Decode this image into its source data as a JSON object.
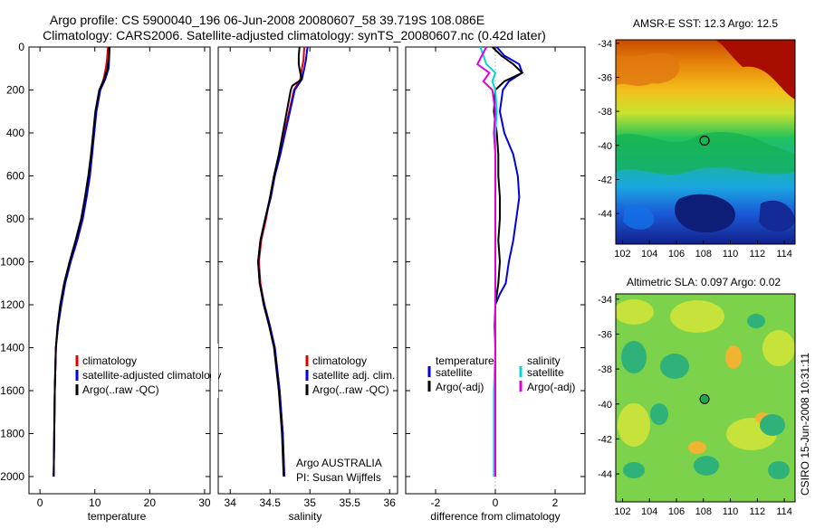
{
  "title": {
    "line1": "Argo profile: CS 5900040_196 06-Jun-2008 20080607_58 39.719S 108.086E",
    "line2": "Climatology: CARS2006. Satellite-adjusted climatology: synTS_20080607.nc (0.42d later)"
  },
  "side_label": "CSIRO 15-Jun-2008 10:31:11",
  "chart_data": [
    {
      "type": "line",
      "id": "temperature",
      "xlabel": "temperature",
      "xlim": [
        -2,
        31
      ],
      "xticks": [
        "0",
        "10",
        "20",
        "30"
      ],
      "xtick_values": [
        0,
        10,
        20,
        30
      ],
      "ylim": [
        2080,
        0
      ],
      "yticks": [
        "0",
        "200",
        "400",
        "600",
        "800",
        "1000",
        "1200",
        "1400",
        "1600",
        "1800",
        "2000"
      ],
      "ytick_values": [
        0,
        200,
        400,
        600,
        800,
        1000,
        1200,
        1400,
        1600,
        1800,
        2000
      ],
      "legend": [
        "climatology",
        "satellite-adjusted climatology",
        "Argo(..raw -QC)"
      ],
      "series": [
        {
          "name": "climatology",
          "color": "#e00000",
          "depth": [
            0,
            60,
            100,
            150,
            200,
            300,
            400,
            500,
            600,
            700,
            800,
            900,
            1000,
            1100,
            1200,
            1300,
            1400,
            1600,
            1800,
            2000
          ],
          "values": [
            12.4,
            12.2,
            12.0,
            11.6,
            10.9,
            10.2,
            9.8,
            9.5,
            9.0,
            8.4,
            7.7,
            6.7,
            5.5,
            4.5,
            3.8,
            3.3,
            2.9,
            2.7,
            2.6,
            2.5
          ]
        },
        {
          "name": "satellite-adjusted climatology",
          "color": "#0000e0",
          "depth": [
            0,
            60,
            100,
            150,
            200,
            300,
            400,
            500,
            600,
            700,
            800,
            900,
            1000,
            1100,
            1200,
            1300,
            1400,
            1600,
            1800,
            2000
          ],
          "values": [
            12.7,
            12.6,
            12.5,
            11.9,
            11.0,
            10.3,
            9.9,
            9.5,
            9.1,
            8.5,
            7.8,
            6.8,
            5.6,
            4.6,
            3.9,
            3.3,
            2.9,
            2.7,
            2.6,
            2.5
          ]
        },
        {
          "name": "Argo(..raw -QC)",
          "color": "#000000",
          "depth": [
            0,
            60,
            100,
            150,
            200,
            300,
            400,
            500,
            600,
            700,
            800,
            900,
            1000,
            1100,
            1200,
            1300,
            1400,
            1600,
            1800,
            2000
          ],
          "values": [
            12.6,
            12.5,
            12.3,
            11.7,
            10.8,
            10.1,
            9.7,
            9.3,
            8.8,
            8.2,
            7.5,
            6.5,
            5.4,
            4.4,
            3.7,
            3.2,
            2.9,
            2.7,
            2.6,
            2.5
          ]
        }
      ]
    },
    {
      "type": "line",
      "id": "salinity",
      "xlabel": "salinity",
      "xlim": [
        33.85,
        36.1
      ],
      "xticks": [
        "34",
        "34.5",
        "35",
        "35.5",
        "36"
      ],
      "xtick_values": [
        34,
        34.5,
        35,
        35.5,
        36
      ],
      "ylim": [
        2080,
        0
      ],
      "legend": [
        "climatology",
        "satellite adj. clim.",
        "Argo(..raw -QC)"
      ],
      "annotations": [
        "Argo AUSTRALIA",
        "PI: Susan Wijffels"
      ],
      "series": [
        {
          "name": "climatology",
          "color": "#e00000",
          "depth": [
            0,
            60,
            100,
            150,
            200,
            300,
            400,
            500,
            600,
            700,
            800,
            900,
            1000,
            1100,
            1200,
            1300,
            1400,
            1600,
            1800,
            2000
          ],
          "values": [
            34.93,
            34.92,
            34.9,
            34.88,
            34.8,
            34.74,
            34.68,
            34.62,
            34.55,
            34.5,
            34.45,
            34.39,
            34.36,
            34.38,
            34.43,
            34.5,
            34.56,
            34.62,
            34.66,
            34.68
          ]
        },
        {
          "name": "satellite adj. clim.",
          "color": "#0000e0",
          "depth": [
            0,
            60,
            100,
            150,
            200,
            300,
            400,
            500,
            600,
            700,
            800,
            900,
            1000,
            1100,
            1200,
            1300,
            1400,
            1600,
            1800,
            2000
          ],
          "values": [
            34.97,
            34.95,
            34.93,
            34.9,
            34.81,
            34.75,
            34.69,
            34.63,
            34.56,
            34.51,
            34.44,
            34.38,
            34.35,
            34.37,
            34.43,
            34.5,
            34.56,
            34.62,
            34.66,
            34.68
          ]
        },
        {
          "name": "Argo(..raw -QC)",
          "color": "#000000",
          "depth": [
            0,
            40,
            80,
            120,
            150,
            180,
            200,
            300,
            400,
            500,
            600,
            700,
            800,
            900,
            1000,
            1100,
            1200,
            1300,
            1400,
            1600,
            1800,
            2000
          ],
          "values": [
            34.87,
            34.86,
            34.86,
            34.88,
            34.9,
            34.78,
            34.76,
            34.71,
            34.66,
            34.61,
            34.55,
            34.5,
            34.44,
            34.38,
            34.35,
            34.37,
            34.42,
            34.49,
            34.55,
            34.61,
            34.65,
            34.67
          ]
        }
      ]
    },
    {
      "type": "line",
      "id": "difference",
      "xlabel": "difference from climatology",
      "xlim": [
        -3,
        3
      ],
      "xticks": [
        "-2",
        "0",
        "2"
      ],
      "xtick_values": [
        -2,
        0,
        2
      ],
      "ylim": [
        2080,
        0
      ],
      "legend": [
        "temperature",
        "satellite",
        "Argo(-adj)",
        "salinity",
        "satellite",
        "Argo(-adj)"
      ],
      "series": [
        {
          "name": "temperature satellite",
          "color": "#0000e0",
          "depth": [
            0,
            40,
            80,
            120,
            160,
            200,
            300,
            400,
            500,
            600,
            700,
            800,
            900,
            1000,
            1100,
            1150,
            1200,
            1300,
            1400,
            1600,
            1800,
            2000
          ],
          "values": [
            0.05,
            0.3,
            0.8,
            0.9,
            0.45,
            0.25,
            0.15,
            0.3,
            0.6,
            0.75,
            0.8,
            0.7,
            0.6,
            0.45,
            0.35,
            0.15,
            0.0,
            -0.02,
            0.0,
            0.0,
            0.0,
            0.0
          ]
        },
        {
          "name": "temperature Argo(-adj)",
          "color": "#000000",
          "depth": [
            0,
            40,
            80,
            120,
            160,
            200,
            300,
            400,
            500,
            600,
            700,
            800,
            900,
            1000,
            1100,
            1200,
            1300,
            1400,
            1600,
            1800,
            2000
          ],
          "values": [
            -0.1,
            0.2,
            0.6,
            0.9,
            0.3,
            0.0,
            -0.05,
            0.05,
            0.1,
            0.1,
            0.15,
            0.15,
            0.1,
            0.15,
            0.1,
            0.0,
            0.0,
            0.0,
            0.0,
            0.0,
            0.0
          ]
        },
        {
          "name": "salinity satellite",
          "color": "#00d8d8",
          "depth": [
            0,
            40,
            80,
            120,
            160,
            200,
            300,
            400,
            500,
            600,
            700,
            800,
            900,
            1000,
            1100,
            1200,
            1300,
            1400,
            1600,
            1800,
            2000
          ],
          "values": [
            -0.5,
            -0.4,
            -0.3,
            0.0,
            -0.1,
            0.0,
            0.05,
            0.0,
            0.0,
            0.0,
            0.0,
            0.0,
            0.0,
            0.0,
            0.0,
            0.0,
            0.0,
            0.0,
            -0.05,
            -0.05,
            -0.05
          ]
        },
        {
          "name": "salinity Argo(-adj)",
          "color": "#e000e0",
          "depth": [
            0,
            40,
            80,
            120,
            160,
            200,
            300,
            400,
            500,
            600,
            700,
            800,
            900,
            1000,
            1100,
            1200,
            1300,
            1400,
            1600,
            1800,
            2000
          ],
          "values": [
            -0.3,
            -0.45,
            -0.6,
            -0.2,
            -0.4,
            -0.1,
            0.0,
            -0.05,
            0.0,
            0.0,
            0.0,
            0.0,
            0.0,
            0.0,
            0.0,
            0.0,
            0.0,
            0.0,
            0.0,
            0.0,
            0.0
          ]
        }
      ]
    },
    {
      "type": "heatmap",
      "id": "sst_map",
      "title": "AMSR-E SST: 12.3 Argo: 12.5",
      "xlim": [
        101.5,
        114.8
      ],
      "ylim": [
        -45.8,
        -33.8
      ],
      "xticks": [
        "102",
        "104",
        "106",
        "108",
        "110",
        "112",
        "114"
      ],
      "xtick_values": [
        102,
        104,
        106,
        108,
        110,
        112,
        114
      ],
      "yticks": [
        "-34",
        "-36",
        "-38",
        "-40",
        "-42",
        "-44"
      ],
      "ytick_values": [
        -34,
        -36,
        -38,
        -40,
        -42,
        -44
      ],
      "marker": {
        "lon": 108.086,
        "lat": -39.719
      }
    },
    {
      "type": "heatmap",
      "id": "sla_map",
      "title": "Altimetric SLA: 0.097 Argo: 0.02",
      "xlim": [
        101.5,
        114.8
      ],
      "ylim": [
        -45.6,
        -33.7
      ],
      "xticks": [
        "102",
        "104",
        "106",
        "108",
        "110",
        "112",
        "114"
      ],
      "xtick_values": [
        102,
        104,
        106,
        108,
        110,
        112,
        114
      ],
      "yticks": [
        "-34",
        "-36",
        "-38",
        "-40",
        "-42",
        "-44"
      ],
      "ytick_values": [
        -34,
        -36,
        -38,
        -40,
        -42,
        -44
      ],
      "marker": {
        "lon": 108.086,
        "lat": -39.719
      }
    }
  ]
}
